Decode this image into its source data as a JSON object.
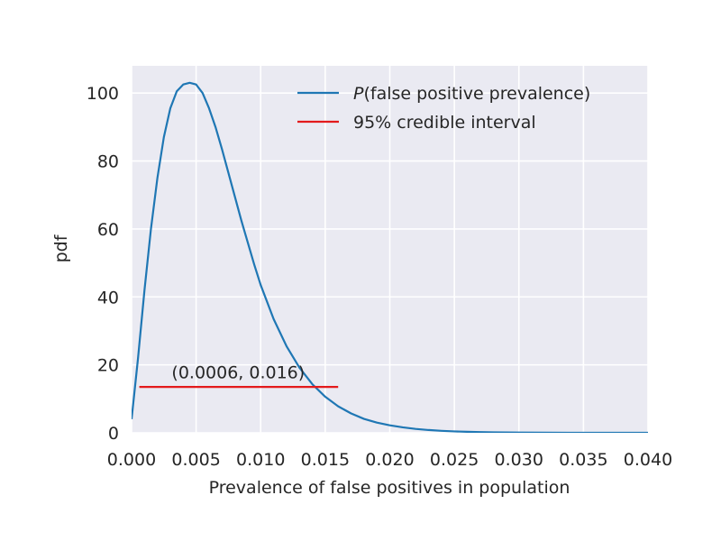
{
  "chart_data": {
    "type": "line",
    "title": "",
    "xlabel": "Prevalence of false positives in population",
    "ylabel": "pdf",
    "xlim": [
      0.0,
      0.04
    ],
    "ylim": [
      0,
      108
    ],
    "grid": true,
    "legend_position": "top-right",
    "x_ticks": [
      "0.000",
      "0.005",
      "0.010",
      "0.015",
      "0.020",
      "0.025",
      "0.030",
      "0.035",
      "0.040"
    ],
    "y_ticks": [
      "0",
      "20",
      "40",
      "60",
      "80",
      "100"
    ],
    "series": [
      {
        "name": "P(false positive prevalence)",
        "legend_italic": "P",
        "legend_rest": "(false positive prevalence)",
        "color": "#1f77b4",
        "x": [
          0.0,
          0.0005,
          0.001,
          0.0015,
          0.002,
          0.0025,
          0.003,
          0.0035,
          0.004,
          0.0045,
          0.005,
          0.0055,
          0.006,
          0.0065,
          0.007,
          0.0075,
          0.008,
          0.0085,
          0.009,
          0.0095,
          0.01,
          0.011,
          0.012,
          0.013,
          0.014,
          0.015,
          0.016,
          0.017,
          0.018,
          0.019,
          0.02,
          0.021,
          0.022,
          0.023,
          0.024,
          0.025,
          0.026,
          0.027,
          0.028,
          0.029,
          0.03,
          0.032,
          0.034,
          0.036,
          0.038,
          0.04
        ],
        "y": [
          4,
          22,
          42,
          60,
          75,
          87,
          95.5,
          100.5,
          102.5,
          103,
          102.5,
          100,
          95.5,
          90,
          83.5,
          76.5,
          69.5,
          62.5,
          56,
          49.5,
          43.5,
          33.5,
          25.5,
          19.2,
          14.3,
          10.6,
          7.8,
          5.7,
          4.1,
          3.0,
          2.2,
          1.6,
          1.15,
          0.82,
          0.58,
          0.41,
          0.29,
          0.21,
          0.15,
          0.11,
          0.08,
          0.04,
          0.02,
          0.01,
          0.005,
          0.002
        ]
      },
      {
        "name": "95% credible interval",
        "color": "#e31a1c",
        "x": [
          0.0006,
          0.016
        ],
        "y": [
          13.5,
          13.5
        ]
      }
    ],
    "annotations": [
      {
        "text": "(0.0006, 0.016)",
        "x": 0.0031,
        "y": 16
      }
    ]
  }
}
